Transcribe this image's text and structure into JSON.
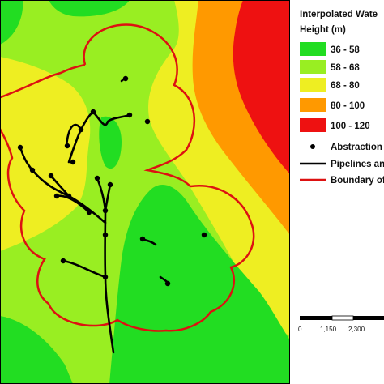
{
  "legend": {
    "title": "Interpolated Wate",
    "subtitle": "Height (m)",
    "classes": [
      {
        "label": "36 - 58",
        "color": "#22dd22"
      },
      {
        "label": "58 - 68",
        "color": "#99ee22"
      },
      {
        "label": "68 - 80",
        "color": "#eeee22"
      },
      {
        "label": "80 - 100",
        "color": "#ff9900"
      },
      {
        "label": "100 - 120",
        "color": "#ee1111"
      }
    ],
    "symbols": [
      {
        "label": "Abstraction I",
        "icon": "dot-icon"
      },
      {
        "label": "Pipelines an",
        "icon": "black-line-icon"
      },
      {
        "label": "Boundary of",
        "icon": "red-line-icon"
      }
    ]
  },
  "scalebar": {
    "ticks": [
      "0",
      "1,150",
      "2,300"
    ]
  },
  "colors": {
    "boundary": "#dd1111",
    "pipeline": "#000000"
  }
}
